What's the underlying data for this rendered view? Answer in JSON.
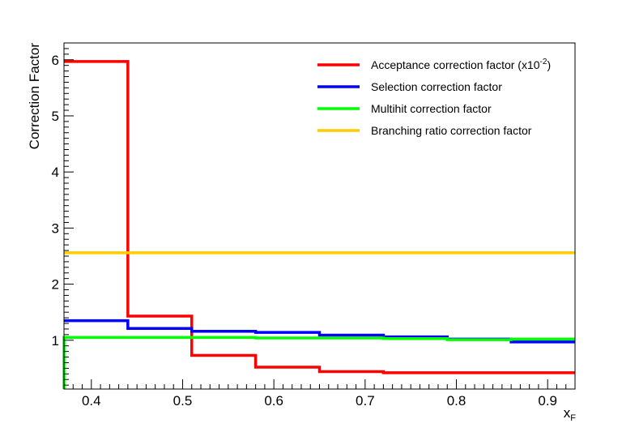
{
  "chart_data": {
    "type": "line",
    "step": true,
    "title": "",
    "xlabel": "x",
    "xlabel_sub": "F",
    "ylabel": "Correction Factor",
    "xlim": [
      0.37,
      0.93
    ],
    "ylim": [
      0.13,
      6.3
    ],
    "x_ticks": [
      0.4,
      0.5,
      0.6,
      0.7,
      0.8,
      0.9
    ],
    "y_ticks": [
      1,
      2,
      3,
      4,
      5,
      6
    ],
    "grid": false,
    "legend_position": "top-right",
    "bin_edges": [
      0.37,
      0.44,
      0.51,
      0.58,
      0.65,
      0.72,
      0.79,
      0.86,
      0.93
    ],
    "series": [
      {
        "name": "Acceptance correction factor (x10",
        "name_sup": "-2",
        "name_suffix": ")",
        "color": "#ff0000",
        "values": [
          5.97,
          1.43,
          0.73,
          0.52,
          0.44,
          0.42,
          0.42,
          0.42
        ]
      },
      {
        "name": "Selection correction factor",
        "color": "#0000ff",
        "values": [
          1.35,
          1.21,
          1.16,
          1.14,
          1.09,
          1.06,
          1.02,
          0.97
        ]
      },
      {
        "name": "Multihit correction factor",
        "color": "#00ff00",
        "values": [
          1.05,
          1.05,
          1.05,
          1.04,
          1.04,
          1.03,
          1.01,
          1.02
        ]
      },
      {
        "name": "Branching ratio correction factor",
        "color": "#ffcc00",
        "values": [
          2.56,
          2.56,
          2.56,
          2.56,
          2.56,
          2.56,
          2.56,
          2.56
        ]
      }
    ]
  }
}
